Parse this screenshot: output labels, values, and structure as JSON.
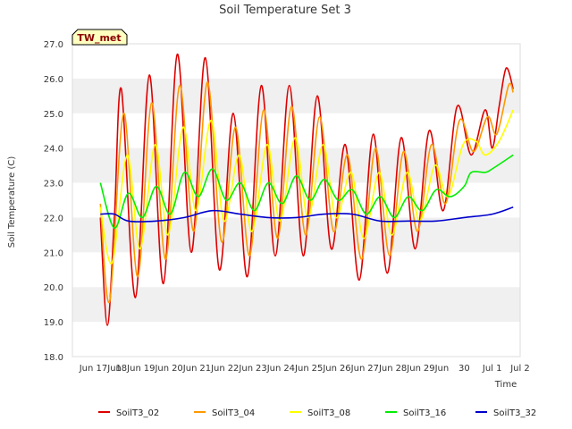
{
  "chart_data": {
    "type": "line",
    "title": "Soil Temperature Set 3",
    "xlabel": "Time",
    "ylabel": "Soil Temperature (C)",
    "badge": "TW_met",
    "ylim": [
      18.0,
      27.0
    ],
    "xlim": [
      "Jun 16",
      "Jul 2"
    ],
    "yticks": [
      "18.0",
      "19.0",
      "20.0",
      "21.0",
      "22.0",
      "23.0",
      "24.0",
      "25.0",
      "26.0",
      "27.0"
    ],
    "xticks": [
      "Jun 17",
      "Jun 18",
      "Jun 19",
      "Jun 20",
      "Jun 21",
      "Jun 22",
      "Jun 23",
      "Jun 24",
      "Jun 25",
      "Jun 26",
      "Jun 27",
      "Jun 28",
      "Jun 29",
      "Jun 30",
      "Jul 1",
      "Jul 2"
    ],
    "xtick_labels": [
      "Jun 17Jun",
      "18Jun",
      "19Jun",
      "20Jun",
      "21Jun",
      "22Jun",
      "23Jun",
      "24Jun",
      "25Jun",
      "26Jun",
      "27Jun",
      "28Jun",
      "29Jun",
      "30",
      "Jul 1",
      "Jul 2"
    ],
    "legend_position": "bottom",
    "grid": "alternating horizontal bands",
    "series": [
      {
        "name": "SoilT3_02",
        "color": "#dd0000",
        "points": [
          [
            "Jun 17",
            22.0
          ],
          [
            "Jun 17 06:00",
            18.9
          ],
          [
            "Jun 17 12:00",
            22.0
          ],
          [
            "Jun 17 18:00",
            25.7
          ],
          [
            "Jun 18 06:00",
            19.7
          ],
          [
            "Jun 18 18:00",
            26.1
          ],
          [
            "Jun 19 06:00",
            20.1
          ],
          [
            "Jun 19 18:00",
            26.7
          ],
          [
            "Jun 20 06:00",
            21.0
          ],
          [
            "Jun 20 18:00",
            26.6
          ],
          [
            "Jun 21 06:00",
            20.5
          ],
          [
            "Jun 21 18:00",
            25.0
          ],
          [
            "Jun 22 06:00",
            20.3
          ],
          [
            "Jun 22 18:00",
            25.8
          ],
          [
            "Jun 23 06:00",
            20.9
          ],
          [
            "Jun 23 18:00",
            25.8
          ],
          [
            "Jun 24 06:00",
            20.9
          ],
          [
            "Jun 24 18:00",
            25.5
          ],
          [
            "Jun 25 06:00",
            21.1
          ],
          [
            "Jun 25 18:00",
            24.1
          ],
          [
            "Jun 26 06:00",
            20.2
          ],
          [
            "Jun 26 18:00",
            24.4
          ],
          [
            "Jun 27 06:00",
            20.4
          ],
          [
            "Jun 27 18:00",
            24.3
          ],
          [
            "Jun 28 06:00",
            21.1
          ],
          [
            "Jun 28 18:00",
            24.5
          ],
          [
            "Jun 29 06:00",
            22.2
          ],
          [
            "Jun 29 18:00",
            25.2
          ],
          [
            "Jun 30 06:00",
            23.8
          ],
          [
            "Jun 30 18:00",
            25.1
          ],
          [
            "Jul 1 00:00",
            24.0
          ],
          [
            "Jul 1 06:00",
            25.2
          ],
          [
            "Jul 1 12:00",
            26.3
          ],
          [
            "Jul 1 18:00",
            25.7
          ]
        ]
      },
      {
        "name": "SoilT3_04",
        "color": "#ff9900",
        "points": [
          [
            "Jun 17",
            22.4
          ],
          [
            "Jun 17 08:00",
            19.6
          ],
          [
            "Jun 17 20:00",
            25.0
          ],
          [
            "Jun 18 08:00",
            20.3
          ],
          [
            "Jun 18 20:00",
            25.3
          ],
          [
            "Jun 19 08:00",
            20.8
          ],
          [
            "Jun 19 20:00",
            25.8
          ],
          [
            "Jun 20 08:00",
            21.6
          ],
          [
            "Jun 20 20:00",
            25.9
          ],
          [
            "Jun 21 08:00",
            21.3
          ],
          [
            "Jun 21 20:00",
            24.6
          ],
          [
            "Jun 22 08:00",
            20.9
          ],
          [
            "Jun 22 20:00",
            25.1
          ],
          [
            "Jun 23 08:00",
            21.4
          ],
          [
            "Jun 23 20:00",
            25.2
          ],
          [
            "Jun 24 08:00",
            21.5
          ],
          [
            "Jun 24 20:00",
            24.9
          ],
          [
            "Jun 25 08:00",
            21.6
          ],
          [
            "Jun 25 20:00",
            23.8
          ],
          [
            "Jun 26 08:00",
            20.8
          ],
          [
            "Jun 26 20:00",
            24.0
          ],
          [
            "Jun 27 08:00",
            20.9
          ],
          [
            "Jun 27 20:00",
            23.9
          ],
          [
            "Jun 28 08:00",
            21.6
          ],
          [
            "Jun 28 20:00",
            24.1
          ],
          [
            "Jun 29 08:00",
            22.4
          ],
          [
            "Jun 29 20:00",
            24.8
          ],
          [
            "Jun 30 08:00",
            23.9
          ],
          [
            "Jun 30 20:00",
            24.9
          ],
          [
            "Jul 1 04:00",
            24.4
          ],
          [
            "Jul 1 14:00",
            25.8
          ],
          [
            "Jul 1 18:00",
            25.6
          ]
        ]
      },
      {
        "name": "SoilT3_08",
        "color": "#ffff00",
        "points": [
          [
            "Jun 17",
            22.3
          ],
          [
            "Jun 17 10:00",
            20.7
          ],
          [
            "Jun 17 23:00",
            23.8
          ],
          [
            "Jun 18 10:00",
            21.1
          ],
          [
            "Jun 18 23:00",
            24.1
          ],
          [
            "Jun 19 10:00",
            21.5
          ],
          [
            "Jun 19 23:00",
            24.6
          ],
          [
            "Jun 20 10:00",
            22.2
          ],
          [
            "Jun 20 23:00",
            24.8
          ],
          [
            "Jun 21 10:00",
            21.9
          ],
          [
            "Jun 21 23:00",
            23.8
          ],
          [
            "Jun 22 10:00",
            21.6
          ],
          [
            "Jun 22 23:00",
            24.1
          ],
          [
            "Jun 23 10:00",
            21.9
          ],
          [
            "Jun 23 23:00",
            24.3
          ],
          [
            "Jun 24 10:00",
            22.0
          ],
          [
            "Jun 24 23:00",
            24.1
          ],
          [
            "Jun 25 10:00",
            22.0
          ],
          [
            "Jun 25 23:00",
            23.3
          ],
          [
            "Jun 26 10:00",
            21.4
          ],
          [
            "Jun 26 23:00",
            23.3
          ],
          [
            "Jun 27 10:00",
            21.5
          ],
          [
            "Jun 27 23:00",
            23.3
          ],
          [
            "Jun 28 10:00",
            21.9
          ],
          [
            "Jun 28 23:00",
            23.5
          ],
          [
            "Jun 29 10:00",
            22.6
          ],
          [
            "Jun 29 23:00",
            24.1
          ],
          [
            "Jun 30 10:00",
            24.2
          ],
          [
            "Jun 30 18:00",
            23.8
          ],
          [
            "Jul 1 06:00",
            24.2
          ],
          [
            "Jul 1 18:00",
            25.1
          ]
        ]
      },
      {
        "name": "SoilT3_16",
        "color": "#00ee00",
        "points": [
          [
            "Jun 17",
            23.0
          ],
          [
            "Jun 17 12:00",
            21.7
          ],
          [
            "Jun 18 00:00",
            22.7
          ],
          [
            "Jun 18 12:00",
            22.0
          ],
          [
            "Jun 19 00:00",
            22.9
          ],
          [
            "Jun 19 12:00",
            22.1
          ],
          [
            "Jun 20 00:00",
            23.3
          ],
          [
            "Jun 20 12:00",
            22.6
          ],
          [
            "Jun 21 00:00",
            23.4
          ],
          [
            "Jun 21 12:00",
            22.5
          ],
          [
            "Jun 22 00:00",
            23.0
          ],
          [
            "Jun 22 12:00",
            22.2
          ],
          [
            "Jun 23 00:00",
            23.0
          ],
          [
            "Jun 23 12:00",
            22.4
          ],
          [
            "Jun 24 00:00",
            23.2
          ],
          [
            "Jun 24 12:00",
            22.5
          ],
          [
            "Jun 25 00:00",
            23.1
          ],
          [
            "Jun 25 12:00",
            22.5
          ],
          [
            "Jun 26 00:00",
            22.8
          ],
          [
            "Jun 26 12:00",
            22.1
          ],
          [
            "Jun 27 00:00",
            22.6
          ],
          [
            "Jun 27 12:00",
            22.0
          ],
          [
            "Jun 28 00:00",
            22.6
          ],
          [
            "Jun 28 12:00",
            22.2
          ],
          [
            "Jun 29 00:00",
            22.8
          ],
          [
            "Jun 29 12:00",
            22.6
          ],
          [
            "Jun 30 00:00",
            22.9
          ],
          [
            "Jun 30 06:00",
            23.3
          ],
          [
            "Jun 30 18:00",
            23.3
          ],
          [
            "Jul 1 00:00",
            23.4
          ],
          [
            "Jul 1 18:00",
            23.8
          ]
        ]
      },
      {
        "name": "SoilT3_32",
        "color": "#0000cc",
        "points": [
          [
            "Jun 17",
            22.1
          ],
          [
            "Jun 17 12:00",
            22.1
          ],
          [
            "Jun 18 00:00",
            21.9
          ],
          [
            "Jun 19 00:00",
            21.9
          ],
          [
            "Jun 20 00:00",
            22.0
          ],
          [
            "Jun 21 00:00",
            22.2
          ],
          [
            "Jun 22 00:00",
            22.1
          ],
          [
            "Jun 23 00:00",
            22.0
          ],
          [
            "Jun 24 00:00",
            22.0
          ],
          [
            "Jun 25 00:00",
            22.1
          ],
          [
            "Jun 26 00:00",
            22.1
          ],
          [
            "Jun 27 00:00",
            21.9
          ],
          [
            "Jun 28 00:00",
            21.9
          ],
          [
            "Jun 29 00:00",
            21.9
          ],
          [
            "Jun 30 00:00",
            22.0
          ],
          [
            "Jul 1 00:00",
            22.1
          ],
          [
            "Jul 1 18:00",
            22.3
          ]
        ]
      }
    ]
  }
}
